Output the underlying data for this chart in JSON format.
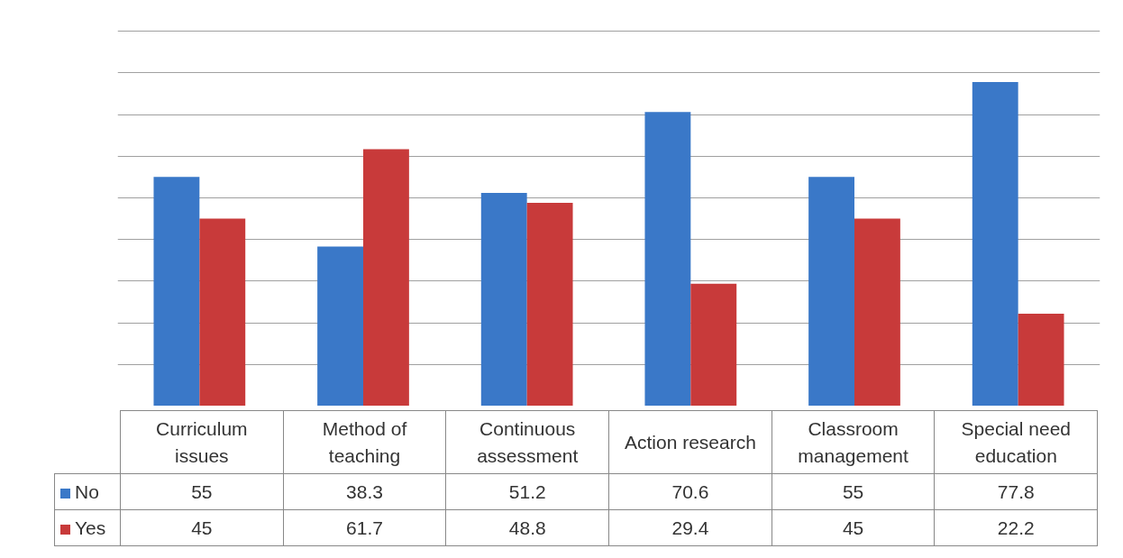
{
  "chart_data": {
    "type": "bar",
    "categories": [
      "Curriculum issues",
      "Method of teaching",
      "Continuous assessment",
      "Action research",
      "Classroom management",
      "Special need education"
    ],
    "series": [
      {
        "name": "No",
        "color": "#3a78c8",
        "values": [
          55,
          38.3,
          51.2,
          70.6,
          55,
          77.8
        ]
      },
      {
        "name": "Yes",
        "color": "#c83a3a",
        "values": [
          45,
          61.7,
          48.8,
          29.4,
          45,
          22.2
        ]
      }
    ],
    "yticks": [
      {
        "value": 10,
        "label": null
      },
      {
        "value": 20,
        "label": null
      },
      {
        "value": 30,
        "label": null
      },
      {
        "value": 40,
        "label": null
      },
      {
        "value": 50,
        "label": null
      },
      {
        "value": 60,
        "label": null
      },
      {
        "value": 70,
        "label": null
      },
      {
        "value": 80,
        "label": null
      },
      {
        "value": 90,
        "label": null
      }
    ],
    "tick_labels": "x",
    "grid": "y",
    "data_labels": true,
    "legend": "bottom"
  }
}
